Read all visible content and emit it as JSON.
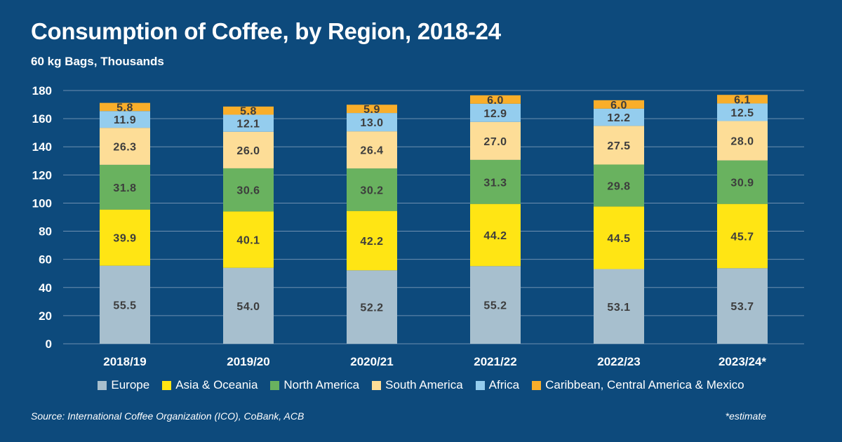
{
  "chart_data": {
    "type": "bar",
    "stacked": true,
    "title": "Consumption of Coffee, by Region, 2018-24",
    "subtitle": "60 kg Bags, Thousands",
    "categories": [
      "2018/19",
      "2019/20",
      "2020/21",
      "2021/22",
      "2022/23",
      "2023/24*"
    ],
    "ylim": [
      0,
      180
    ],
    "yticks": [
      0,
      20,
      40,
      60,
      80,
      100,
      120,
      140,
      160,
      180
    ],
    "grid": true,
    "legend_position": "bottom",
    "series": [
      {
        "name": "Europe",
        "color": "#a7bfce",
        "values": [
          55.5,
          54.0,
          52.2,
          55.2,
          53.1,
          53.7
        ],
        "labels": [
          "55.5",
          "54.0",
          "52.2",
          "55.2",
          "53.1",
          "53.7"
        ]
      },
      {
        "name": "Asia & Oceania",
        "color": "#ffe514",
        "values": [
          39.9,
          40.1,
          42.2,
          44.2,
          44.5,
          45.7
        ],
        "labels": [
          "39.9",
          "40.1",
          "42.2",
          "44.2",
          "44.5",
          "45.7"
        ]
      },
      {
        "name": "North America",
        "color": "#69b25f",
        "values": [
          31.8,
          30.6,
          30.2,
          31.3,
          29.8,
          30.9
        ],
        "labels": [
          "31.8",
          "30.6",
          "30.2",
          "31.3",
          "29.8",
          "30.9"
        ]
      },
      {
        "name": "South America",
        "color": "#fddd97",
        "values": [
          26.3,
          26.0,
          26.4,
          27.0,
          27.5,
          28.0
        ],
        "labels": [
          "26.3",
          "26.0",
          "26.4",
          "27.0",
          "27.5",
          "28.0"
        ]
      },
      {
        "name": "Africa",
        "color": "#94cdee",
        "values": [
          11.9,
          12.1,
          13.0,
          12.9,
          12.2,
          12.5
        ],
        "labels": [
          "11.9",
          "12.1",
          "13.0",
          "12.9",
          "12.2",
          "12.5"
        ]
      },
      {
        "name": "Caribbean, Central America & Mexico",
        "color": "#f9ae2a",
        "values": [
          5.8,
          5.8,
          5.9,
          6.0,
          6.0,
          6.1
        ],
        "labels": [
          "5.8",
          "5.8",
          "5.9",
          "6.0",
          "6.0",
          "6.1"
        ]
      }
    ],
    "source": "Source: International Coffee Organization (ICO), CoBank, ACB",
    "note": "*estimate"
  }
}
